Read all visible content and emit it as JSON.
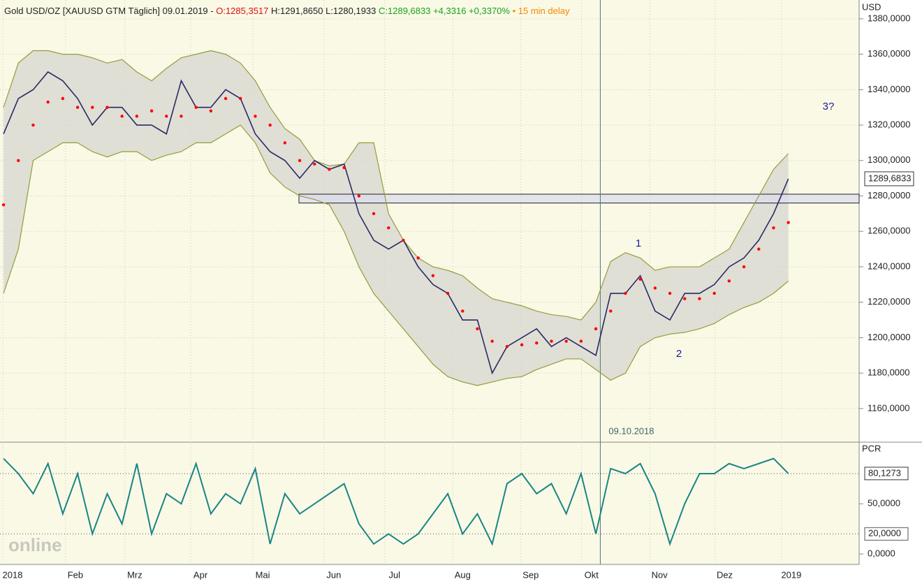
{
  "chart_data": [
    {
      "type": "line",
      "header": [
        "Gold USD/OZ [XAUUSD GTM Täglich] 09.01.2019 -",
        "O:1285,3517",
        "H:1291,8650 L:1280,1933",
        "C:1289,6833 +4,3316 +0,3370%",
        "• 15 min delay"
      ],
      "y_label": "USD",
      "ylim": [
        1141.4,
        1390.6
      ],
      "yticks": [
        {
          "value": 1160,
          "label": "1160,0000"
        },
        {
          "value": 1180,
          "label": "1180,0000"
        },
        {
          "value": 1200,
          "label": "1200,0000"
        },
        {
          "value": 1220,
          "label": "1220,0000"
        },
        {
          "value": 1240,
          "label": "1240,0000"
        },
        {
          "value": 1260,
          "label": "1260,0000"
        },
        {
          "value": 1280,
          "label": "1280,0000"
        },
        {
          "value": 1300,
          "label": "1300,0000"
        },
        {
          "value": 1320,
          "label": "1320,0000"
        },
        {
          "value": 1340,
          "label": "1340,0000"
        },
        {
          "value": 1360,
          "label": "1360,0000"
        },
        {
          "value": 1380,
          "label": "1380,0000"
        }
      ],
      "xlim": [
        -0.24,
        57.78
      ],
      "xticks": [
        {
          "value": 0.61,
          "label": "2018"
        },
        {
          "value": 4.85,
          "label": "Feb"
        },
        {
          "value": 8.86,
          "label": "Mrz"
        },
        {
          "value": 13.3,
          "label": "Apr"
        },
        {
          "value": 17.5,
          "label": "Mai"
        },
        {
          "value": 22.3,
          "label": "Jun"
        },
        {
          "value": 26.4,
          "label": "Jul"
        },
        {
          "value": 31.0,
          "label": "Aug"
        },
        {
          "value": 35.6,
          "label": "Sep"
        },
        {
          "value": 39.7,
          "label": "Okt"
        },
        {
          "value": 44.3,
          "label": "Nov"
        },
        {
          "value": 48.7,
          "label": "Dez"
        },
        {
          "value": 53.2,
          "label": "2019"
        }
      ],
      "grid": true,
      "marker_line": {
        "value": 40.3,
        "label": "09.10.2018"
      },
      "zone": [
        1276,
        1281
      ],
      "last_price": {
        "value": 1289.6833,
        "label": "1289,6833"
      },
      "annotations": [
        "1",
        "2",
        "3?"
      ],
      "series": [
        {
          "color": "#9a9a3a",
          "values": [
            1330,
            1355,
            1362,
            1362,
            1360,
            1360,
            1358,
            1355,
            1357,
            1350,
            1345,
            1352,
            1358,
            1360,
            1362,
            1360,
            1355,
            1345,
            1330,
            1318,
            1312,
            1300,
            1297,
            1298,
            1310,
            1310,
            1270,
            1255,
            1245,
            1240,
            1238,
            1235,
            1228,
            1222,
            1220,
            1218,
            1215,
            1213,
            1212,
            1210,
            1220,
            1243,
            1248,
            1245,
            1238,
            1240,
            1240,
            1240,
            1245,
            1250,
            1265,
            1280,
            1295,
            1304
          ]
        },
        {
          "color": "#9a9a3a",
          "values": [
            1225,
            1250,
            1300,
            1305,
            1310,
            1310,
            1305,
            1302,
            1305,
            1305,
            1300,
            1303,
            1305,
            1310,
            1310,
            1315,
            1320,
            1310,
            1293,
            1285,
            1280,
            1278,
            1275,
            1260,
            1240,
            1225,
            1215,
            1205,
            1195,
            1185,
            1178,
            1175,
            1173,
            1175,
            1177,
            1178,
            1182,
            1185,
            1188,
            1188,
            1182,
            1176,
            1180,
            1195,
            1200,
            1202,
            1203,
            1205,
            1208,
            1213,
            1217,
            1220,
            1225,
            1232
          ]
        },
        {
          "color": "#2a2a66",
          "values": [
            1315,
            1335,
            1340,
            1350,
            1345,
            1335,
            1320,
            1330,
            1330,
            1320,
            1320,
            1315,
            1345,
            1330,
            1330,
            1340,
            1335,
            1315,
            1305,
            1300,
            1290,
            1300,
            1295,
            1298,
            1270,
            1255,
            1250,
            1255,
            1240,
            1230,
            1225,
            1210,
            1210,
            1180,
            1195,
            1200,
            1205,
            1195,
            1200,
            1195,
            1190,
            1225,
            1225,
            1235,
            1215,
            1210,
            1225,
            1225,
            1230,
            1240,
            1245,
            1255,
            1270,
            1289.6833
          ]
        },
        {
          "color": "#ff0000",
          "marker": "dots",
          "values": [
            1275,
            1300,
            1320,
            1333,
            1335,
            1330,
            1330,
            1330,
            1325,
            1325,
            1328,
            1325,
            1325,
            1330,
            1328,
            1335,
            1335,
            1325,
            1320,
            1310,
            1300,
            1298,
            1295,
            1296,
            1280,
            1270,
            1262,
            1255,
            1245,
            1235,
            1225,
            1215,
            1205,
            1198,
            1195,
            1196,
            1197,
            1198,
            1198,
            1198,
            1205,
            1215,
            1225,
            1233,
            1228,
            1225,
            1222,
            1222,
            1225,
            1232,
            1240,
            1250,
            1262,
            1265
          ]
        }
      ]
    },
    {
      "type": "line",
      "y_label": "PCR",
      "ylim": [
        -10.4,
        110.6
      ],
      "yticks": [
        {
          "value": 0,
          "label": "0,0000"
        },
        {
          "value": 50,
          "label": "50,0000"
        }
      ],
      "levels": [
        80,
        {
          "value": 20,
          "label": "20,0000"
        }
      ],
      "last_value": {
        "value": 80.1273,
        "label": "80,1273"
      },
      "logo": "online",
      "series": [
        {
          "color": "#1a8585",
          "values": [
            95,
            80,
            60,
            90,
            40,
            80,
            20,
            60,
            30,
            90,
            20,
            60,
            50,
            90,
            40,
            60,
            50,
            85,
            10,
            60,
            40,
            50,
            60,
            70,
            30,
            10,
            20,
            10,
            20,
            40,
            60,
            20,
            40,
            10,
            70,
            80,
            60,
            70,
            40,
            80,
            20,
            85,
            80,
            90,
            60,
            10,
            50,
            80,
            80,
            90,
            85,
            90,
            95,
            80.1273
          ]
        }
      ]
    }
  ]
}
